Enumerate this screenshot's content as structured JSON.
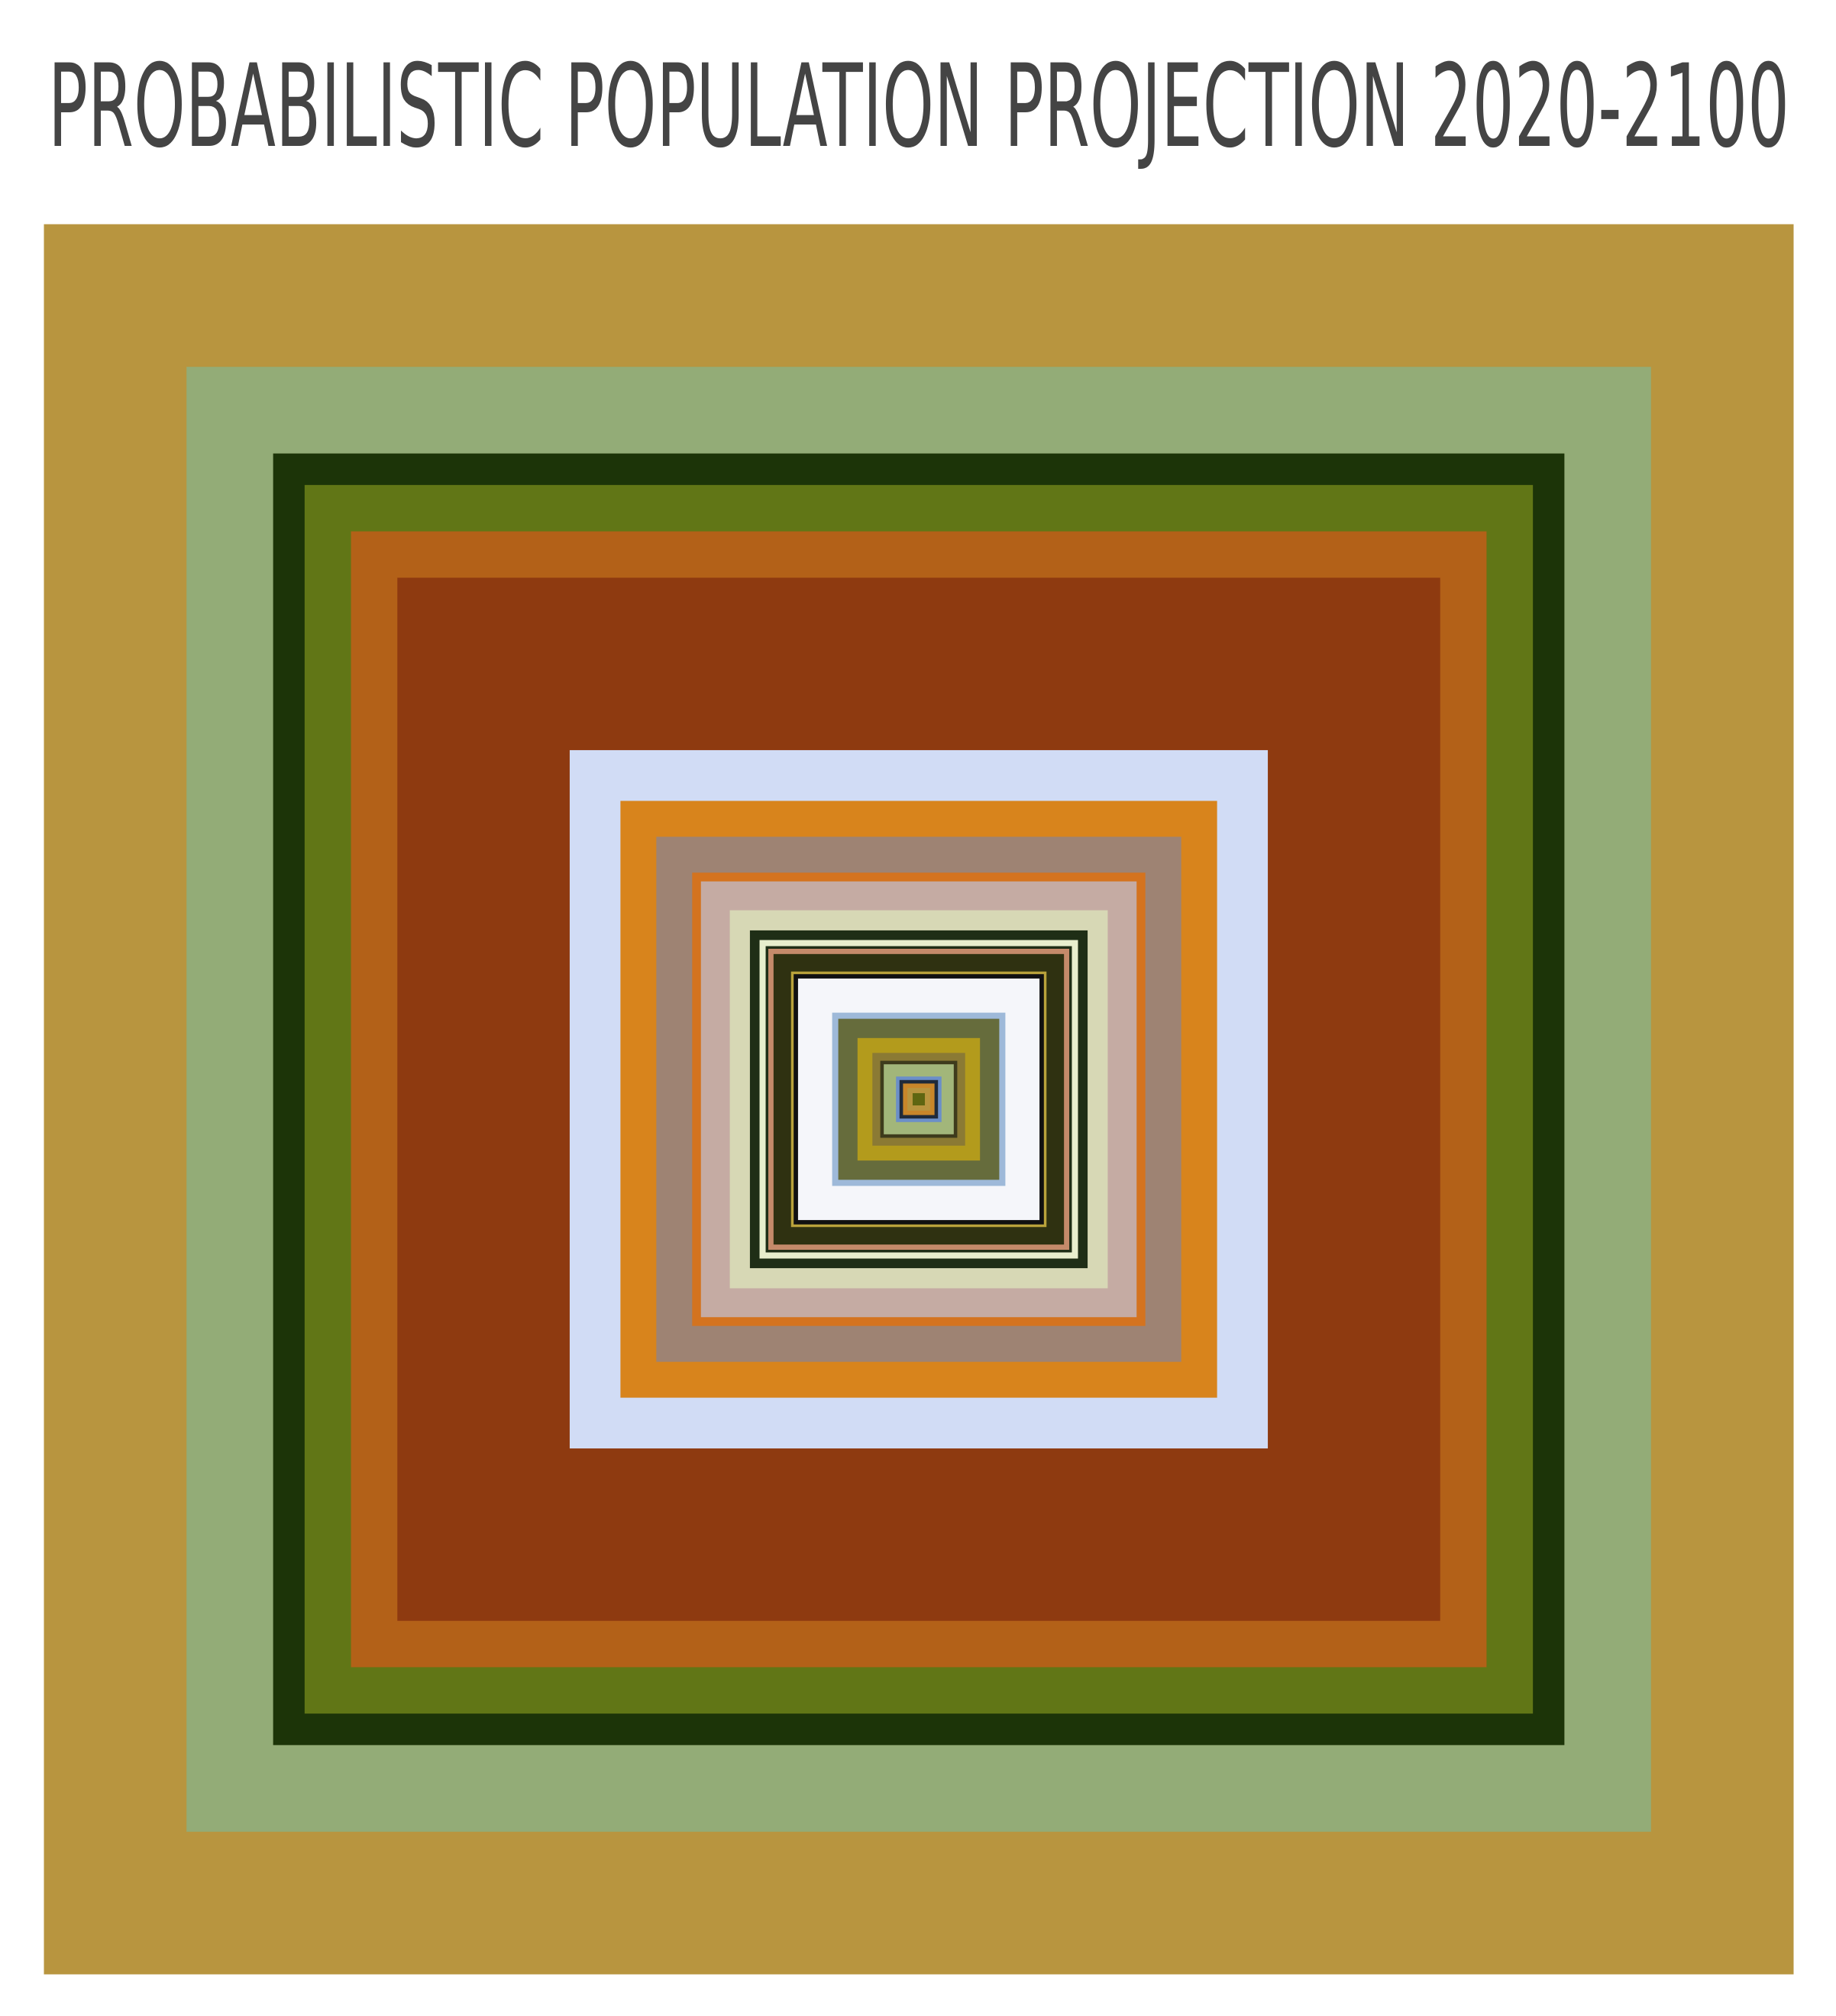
{
  "chart_data": {
    "type": "nested-squares",
    "title": "PROBABILISTIC POPULATION PROJECTION 2020-2100",
    "values": [
      100,
      83.7,
      73.8,
      70.2,
      64.9,
      59.6,
      39.9,
      34.1,
      30.0,
      25.9,
      24.9,
      21.6,
      19.3,
      18.2,
      17.5,
      17.2,
      16.6,
      14.6,
      14.3,
      13.8,
      9.9,
      9.2,
      7.0,
      5.3,
      4.4,
      4.0,
      2.6,
      2.2,
      1.8,
      1.3,
      0.7
    ],
    "colors": [
      "#b8953f",
      "#93ac77",
      "#1c3408",
      "#617616",
      "#b36118",
      "#8e3a10",
      "#d1dcf5",
      "#d8841c",
      "#9e8373",
      "#d4731f",
      "#c5aba3",
      "#d7d8b5",
      "#1f2e16",
      "#e8eecd",
      "#1f2e16",
      "#c58a6a",
      "#2f3111",
      "#b9a23b",
      "#111111",
      "#f5f6fa",
      "#9eb9d9",
      "#666c3c",
      "#b39b1c",
      "#8b7a34",
      "#3e3b1c",
      "#a2b67a",
      "#6b8fc8",
      "#1f2a3a",
      "#c8862a",
      "#b8953f",
      "#5f6611"
    ]
  }
}
